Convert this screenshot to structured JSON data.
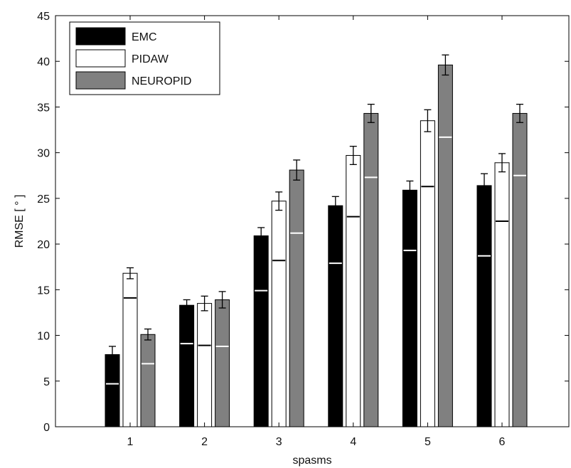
{
  "chart_data": {
    "type": "bar",
    "categories": [
      "1",
      "2",
      "3",
      "4",
      "5",
      "6"
    ],
    "xlabel": "spasms",
    "ylabel": "RMSE [ ° ]",
    "ylim": [
      0,
      45
    ],
    "yticks": [
      "0",
      "5",
      "10",
      "15",
      "20",
      "25",
      "30",
      "35",
      "40",
      "45"
    ],
    "grid": false,
    "legend_position": "top-left",
    "series": [
      {
        "name": "EMC",
        "color": "#000000",
        "values": [
          7.9,
          13.3,
          20.9,
          24.2,
          25.9,
          26.4
        ],
        "error": [
          0.9,
          0.6,
          0.9,
          1.0,
          1.0,
          1.3
        ],
        "inner_mark": [
          4.7,
          9.1,
          14.9,
          17.9,
          19.3,
          18.7
        ]
      },
      {
        "name": "PIDAW",
        "color": "#ffffff",
        "values": [
          16.8,
          13.5,
          24.7,
          29.7,
          33.5,
          28.9
        ],
        "error": [
          0.6,
          0.8,
          1.0,
          1.0,
          1.2,
          1.0
        ],
        "inner_mark": [
          14.1,
          8.9,
          18.2,
          23.0,
          26.3,
          22.5
        ]
      },
      {
        "name": "NEUROPID",
        "color": "#808080",
        "values": [
          10.1,
          13.9,
          28.1,
          34.3,
          39.6,
          34.3
        ],
        "error": [
          0.6,
          0.9,
          1.1,
          1.0,
          1.1,
          1.0
        ],
        "inner_mark": [
          6.9,
          8.8,
          21.2,
          27.3,
          31.7,
          27.5
        ]
      }
    ]
  }
}
